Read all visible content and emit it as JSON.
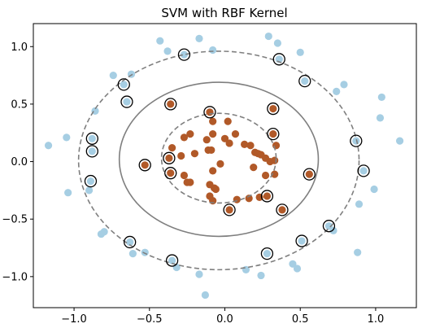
{
  "chart_data": {
    "type": "scatter",
    "title": "SVM with RBF Kernel",
    "xlabel": "",
    "ylabel": "",
    "xlim": [
      -1.27,
      1.27
    ],
    "ylim": [
      -1.27,
      1.2
    ],
    "xticks": [
      -1.0,
      -0.5,
      0.0,
      0.5,
      1.0
    ],
    "xtick_labels": [
      "−1.0",
      "−0.5",
      "0.0",
      "0.5",
      "1.0"
    ],
    "yticks": [
      1.0,
      0.5,
      0.0,
      -0.5,
      -1.0
    ],
    "ytick_labels": [
      "1.0",
      "0.5",
      "0.0",
      "−0.5",
      "−1.0"
    ],
    "grid": false,
    "legend": "none",
    "colors": {
      "outer_class": "#a6cee3",
      "inner_class": "#b15928",
      "support_vector_ring": "#000000",
      "boundary_line": "#7f7f7f"
    },
    "series": [
      {
        "values": [
          [
            -1.17,
            0.14
          ],
          [
            -1.05,
            0.21
          ],
          [
            -1.04,
            -0.27
          ],
          [
            -0.9,
            -0.25
          ],
          [
            -0.88,
            0.2
          ],
          [
            -0.88,
            0.09
          ],
          [
            -0.89,
            -0.17
          ],
          [
            -0.86,
            0.44
          ],
          [
            -0.8,
            -0.61
          ],
          [
            -0.82,
            -0.63
          ],
          [
            -0.74,
            0.75
          ],
          [
            -0.67,
            0.67
          ],
          [
            -0.65,
            0.52
          ],
          [
            -0.62,
            0.76
          ],
          [
            -0.63,
            -0.7
          ],
          [
            -0.61,
            -0.8
          ],
          [
            -0.53,
            -0.79
          ],
          [
            -0.43,
            1.05
          ],
          [
            -0.38,
            0.96
          ],
          [
            -0.35,
            -0.86
          ],
          [
            -0.32,
            -0.92
          ],
          [
            -0.27,
            0.93
          ],
          [
            -0.17,
            1.07
          ],
          [
            -0.17,
            -0.98
          ],
          [
            -0.13,
            -1.16
          ],
          [
            -0.08,
            0.97
          ],
          [
            0.14,
            -0.94
          ],
          [
            0.24,
            -0.99
          ],
          [
            0.28,
            -0.8
          ],
          [
            0.29,
            1.09
          ],
          [
            0.35,
            1.03
          ],
          [
            0.36,
            0.89
          ],
          [
            0.45,
            -0.89
          ],
          [
            0.48,
            -0.93
          ],
          [
            0.5,
            0.95
          ],
          [
            0.51,
            -0.69
          ],
          [
            0.53,
            0.7
          ],
          [
            0.69,
            -0.56
          ],
          [
            0.72,
            -0.6
          ],
          [
            0.74,
            0.61
          ],
          [
            0.79,
            0.67
          ],
          [
            0.87,
            0.18
          ],
          [
            0.89,
            -0.37
          ],
          [
            0.88,
            -0.79
          ],
          [
            0.92,
            -0.08
          ],
          [
            0.99,
            -0.24
          ],
          [
            1.03,
            0.38
          ],
          [
            1.04,
            0.56
          ],
          [
            1.16,
            0.18
          ]
        ]
      },
      {
        "values": [
          [
            -0.53,
            -0.03
          ],
          [
            -0.36,
            0.5
          ],
          [
            -0.37,
            0.03
          ],
          [
            -0.36,
            -0.1
          ],
          [
            -0.35,
            0.12
          ],
          [
            -0.29,
            0.05
          ],
          [
            -0.27,
            0.21
          ],
          [
            -0.27,
            -0.12
          ],
          [
            -0.23,
            0.24
          ],
          [
            -0.23,
            -0.18
          ],
          [
            -0.25,
            -0.18
          ],
          [
            -0.2,
            0.07
          ],
          [
            -0.1,
            0.43
          ],
          [
            -0.12,
            0.19
          ],
          [
            -0.11,
            0.1
          ],
          [
            -0.09,
            0.1
          ],
          [
            -0.08,
            -0.08
          ],
          [
            -0.1,
            -0.2
          ],
          [
            -0.08,
            0.24
          ],
          [
            -0.07,
            -0.23
          ],
          [
            -0.1,
            -0.3
          ],
          [
            -0.08,
            -0.34
          ],
          [
            -0.08,
            0.35
          ],
          [
            -0.06,
            -0.24
          ],
          [
            -0.03,
            -0.02
          ],
          [
            0.0,
            0.2
          ],
          [
            0.02,
            0.35
          ],
          [
            0.03,
            0.16
          ],
          [
            0.03,
            -0.42
          ],
          [
            0.07,
            0.24
          ],
          [
            0.08,
            -0.33
          ],
          [
            0.13,
            0.15
          ],
          [
            0.16,
            -0.32
          ],
          [
            0.17,
            0.14
          ],
          [
            0.19,
            -0.05
          ],
          [
            0.2,
            0.08
          ],
          [
            0.22,
            0.07
          ],
          [
            0.23,
            -0.31
          ],
          [
            0.24,
            0.06
          ],
          [
            0.27,
            0.03
          ],
          [
            0.27,
            -0.12
          ],
          [
            0.28,
            -0.3
          ],
          [
            0.3,
            0.0
          ],
          [
            0.32,
            0.46
          ],
          [
            0.32,
            0.24
          ],
          [
            0.33,
            -0.11
          ],
          [
            0.34,
            0.14
          ],
          [
            0.38,
            -0.42
          ],
          [
            0.56,
            -0.11
          ],
          [
            0.33,
            0.01
          ]
        ]
      }
    ],
    "support_vectors": [
      [
        -0.89,
        -0.17
      ],
      [
        -0.88,
        0.2
      ],
      [
        -0.88,
        0.09
      ],
      [
        -0.67,
        0.67
      ],
      [
        -0.65,
        0.52
      ],
      [
        -0.63,
        -0.7
      ],
      [
        -0.53,
        -0.03
      ],
      [
        -0.36,
        0.5
      ],
      [
        -0.37,
        0.03
      ],
      [
        -0.36,
        -0.1
      ],
      [
        -0.35,
        -0.86
      ],
      [
        -0.27,
        0.93
      ],
      [
        -0.1,
        0.43
      ],
      [
        0.03,
        -0.42
      ],
      [
        0.28,
        -0.8
      ],
      [
        0.28,
        -0.3
      ],
      [
        0.32,
        0.46
      ],
      [
        0.32,
        0.24
      ],
      [
        0.36,
        0.89
      ],
      [
        0.38,
        -0.42
      ],
      [
        0.51,
        -0.69
      ],
      [
        0.53,
        0.7
      ],
      [
        0.56,
        -0.11
      ],
      [
        0.69,
        -0.56
      ],
      [
        0.87,
        0.18
      ],
      [
        0.92,
        -0.08
      ]
    ],
    "contours": [
      {
        "level": "margin_outer",
        "style": "dashed",
        "center": [
          -0.04,
          0.01
        ],
        "radius_x": 0.93,
        "radius_y": 0.95
      },
      {
        "level": "decision_boundary",
        "style": "solid",
        "center": [
          -0.04,
          0.02
        ],
        "radius_x": 0.66,
        "radius_y": 0.67
      },
      {
        "level": "margin_inner",
        "style": "dashed",
        "center": [
          -0.04,
          0.03
        ],
        "radius_x": 0.38,
        "radius_y": 0.39
      }
    ]
  }
}
